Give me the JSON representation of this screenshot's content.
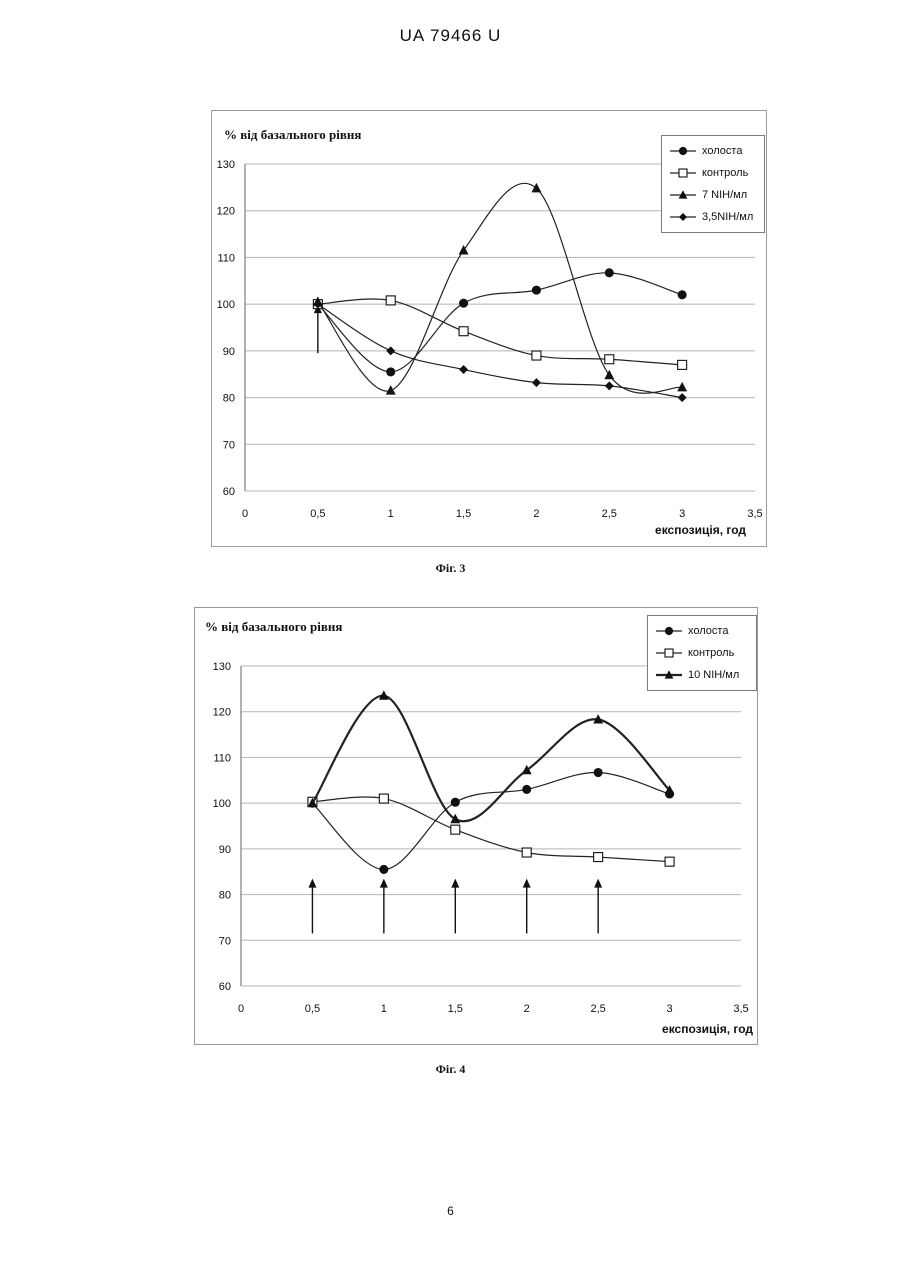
{
  "header": "UA   79466   U",
  "page_number": "6",
  "chart_data": [
    {
      "type": "line",
      "caption": "Фіг. 3",
      "ylabel": "% від базального рівня",
      "xlabel": "експозиція, год",
      "xlim": [
        0,
        3.5
      ],
      "ylim": [
        60,
        130
      ],
      "xticks": [
        "0",
        "0,5",
        "1",
        "1,5",
        "2",
        "2,5",
        "3",
        "3,5"
      ],
      "yticks": [
        "60",
        "70",
        "80",
        "90",
        "100",
        "110",
        "120",
        "130"
      ],
      "grid": "horizontal",
      "legend_position": "top-right",
      "x": [
        0.5,
        1,
        1.5,
        2,
        2.5,
        3
      ],
      "arrows_x": [
        0.5
      ],
      "series": [
        {
          "name": "холоста",
          "marker": "circle",
          "values": [
            100,
            85.5,
            100.2,
            103,
            106.7,
            102
          ]
        },
        {
          "name": "контроль",
          "marker": "square",
          "values": [
            100,
            100.8,
            94.2,
            89,
            88.2,
            87
          ]
        },
        {
          "name": "7 NIH/мл",
          "marker": "triangle",
          "values": [
            100.5,
            81.5,
            111.5,
            124.8,
            84.8,
            82.2
          ]
        },
        {
          "name": "3,5NIH/мл",
          "marker": "diamond",
          "values": [
            100,
            90,
            86,
            83.2,
            82.5,
            80
          ]
        }
      ]
    },
    {
      "type": "line",
      "caption": "Фіг. 4",
      "ylabel": "% від базального рівня",
      "xlabel": "експозиція, год",
      "xlim": [
        0,
        3.5
      ],
      "ylim": [
        60,
        130
      ],
      "xticks": [
        "0",
        "0,5",
        "1",
        "1,5",
        "2",
        "2,5",
        "3",
        "3,5"
      ],
      "yticks": [
        "60",
        "70",
        "80",
        "90",
        "100",
        "110",
        "120",
        "130"
      ],
      "grid": "horizontal",
      "legend_position": "top-right",
      "x": [
        0.5,
        1,
        1.5,
        2,
        2.5,
        3
      ],
      "arrows_x": [
        0.5,
        1,
        1.5,
        2,
        2.5
      ],
      "series": [
        {
          "name": "холоста",
          "marker": "circle",
          "values": [
            100,
            85.5,
            100.2,
            103,
            106.7,
            102
          ]
        },
        {
          "name": "контроль",
          "marker": "square",
          "values": [
            100.3,
            101,
            94.2,
            89.2,
            88.2,
            87.2
          ]
        },
        {
          "name": "10 NIH/мл",
          "marker": "triangle",
          "values": [
            100,
            123.5,
            96.5,
            107.2,
            118.3,
            102.8
          ]
        }
      ]
    }
  ]
}
